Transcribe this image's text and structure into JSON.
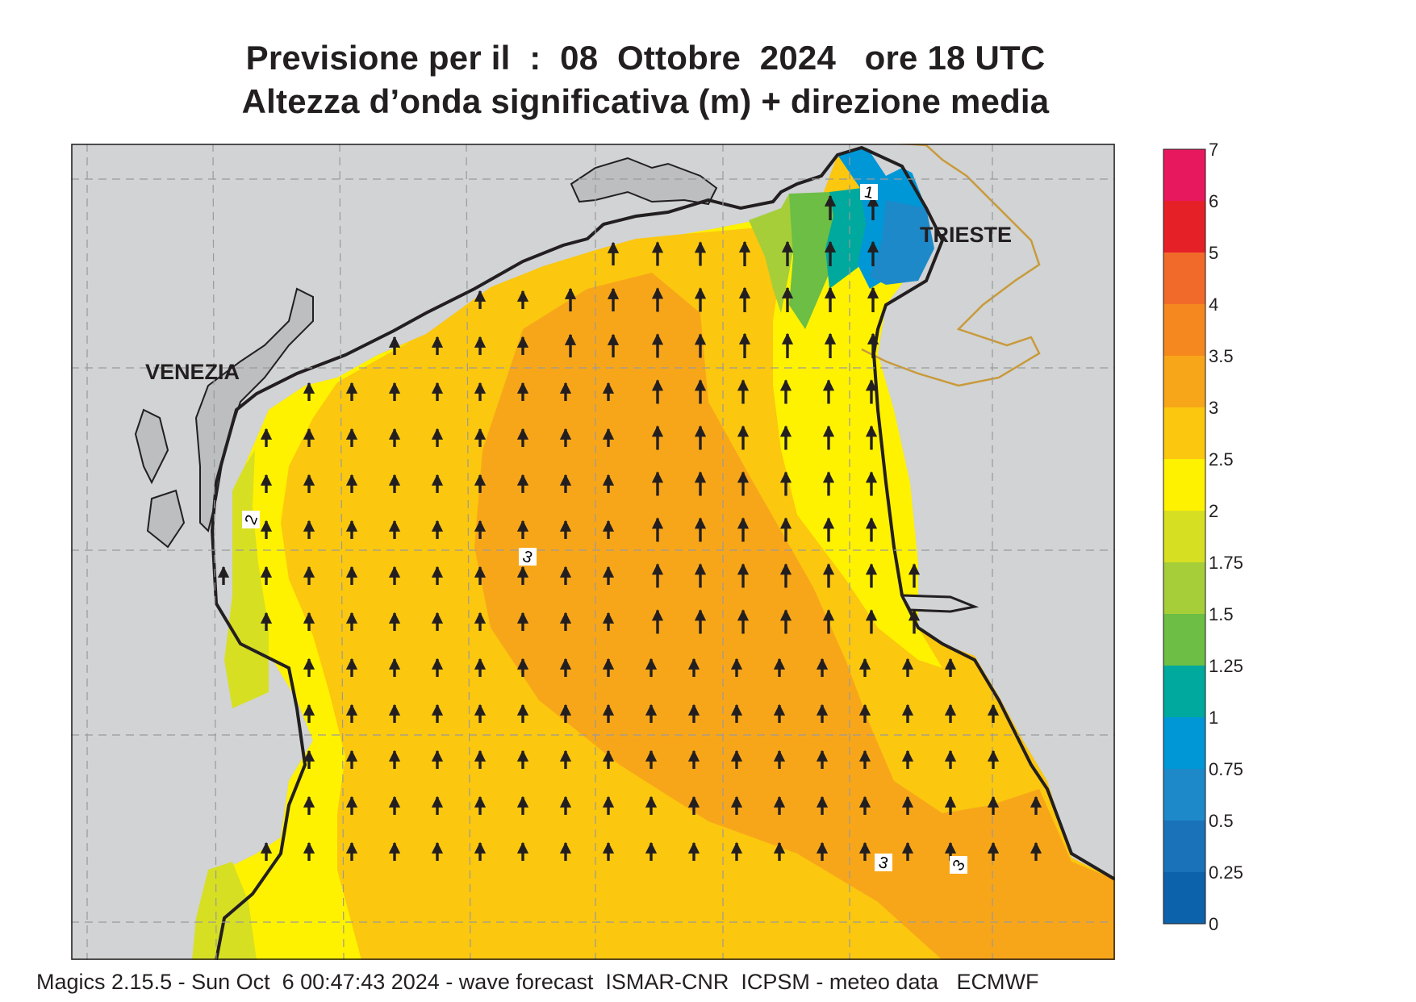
{
  "title_line1": "Previsione per il  :  08  Ottobre  2024   ore 18 UTC",
  "title_line2": "Altezza d’onda significativa (m) + direzione media",
  "labels": {
    "venezia": "VENEZIA",
    "trieste": "TRIESTE"
  },
  "contour_labels": {
    "c1": "1",
    "c2": "2",
    "c3a": "3",
    "c3b": "3",
    "c3c": "3"
  },
  "legend": {
    "ticks": [
      "7",
      "6",
      "5",
      "4",
      "3.5",
      "3",
      "2.5",
      "2",
      "1.75",
      "1.5",
      "1.25",
      "1",
      "0.75",
      "0.5",
      "0.25",
      "0"
    ],
    "colors": [
      "#e8185f",
      "#e52027",
      "#f26a2a",
      "#f5891f",
      "#f8a619",
      "#fbc70f",
      "#fff200",
      "#d7df23",
      "#a6ce39",
      "#6cbe45",
      "#00a99d",
      "#0097d7",
      "#1d89c9",
      "#1a73b9",
      "#0c62ab"
    ]
  },
  "footer": "Magics 2.15.5 - Sun Oct  6 00:47:43 2024 - wave forecast  ISMAR-CNR  ICPSM - meteo data   ECMWF"
}
